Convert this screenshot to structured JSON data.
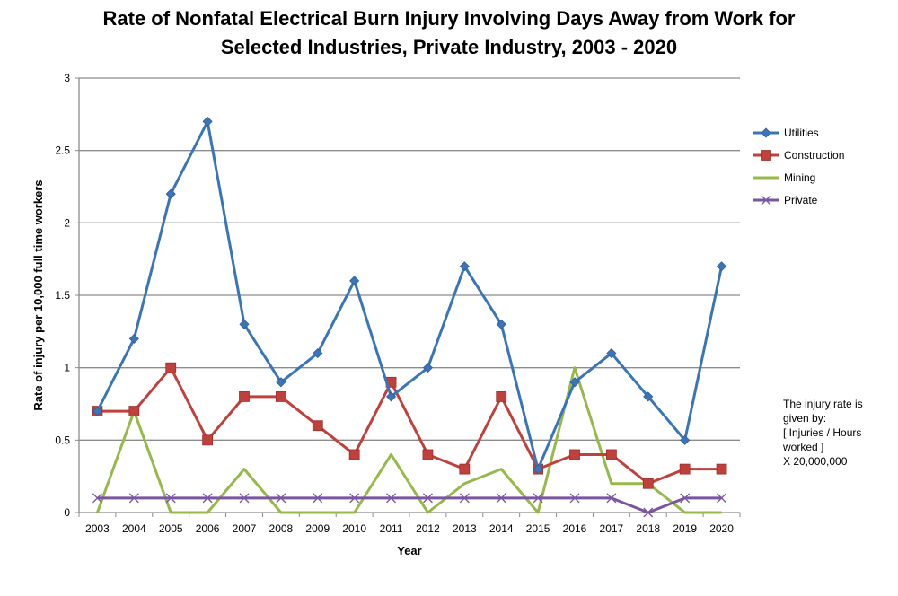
{
  "chart_data": {
    "type": "line",
    "title": [
      "Rate of Nonfatal Electrical Burn Injury Involving Days Away from Work for",
      "Selected Industries, Private Industry, 2003 - 2020"
    ],
    "xlabel": "Year",
    "ylabel": "Rate of injury per 10,000 full time workers",
    "ylim": [
      0,
      3
    ],
    "yticks": [
      "0",
      "0.5",
      "1",
      "1.5",
      "2",
      "2.5",
      "3"
    ],
    "grid": true,
    "legend_position": "right",
    "categories": [
      "2003",
      "2004",
      "2005",
      "2006",
      "2007",
      "2008",
      "2009",
      "2010",
      "2011",
      "2012",
      "2013",
      "2014",
      "2015",
      "2016",
      "2017",
      "2018",
      "2019",
      "2020"
    ],
    "series": [
      {
        "name": "Utilities",
        "color": "#3a75b9",
        "marker": "diamond",
        "values": [
          0.7,
          1.2,
          2.2,
          2.7,
          1.3,
          0.9,
          1.1,
          1.6,
          0.8,
          1.0,
          1.7,
          1.3,
          0.3,
          0.9,
          1.1,
          0.8,
          0.5,
          1.7
        ]
      },
      {
        "name": "Construction",
        "color": "#c0403c",
        "marker": "square",
        "values": [
          0.7,
          0.7,
          1.0,
          0.5,
          0.8,
          0.8,
          0.6,
          0.4,
          0.9,
          0.4,
          0.3,
          0.8,
          0.3,
          0.4,
          0.4,
          0.2,
          0.3,
          0.3
        ]
      },
      {
        "name": "Mining",
        "color": "#98b94a",
        "marker": "none",
        "values": [
          0,
          0.7,
          0,
          0,
          0.3,
          0,
          0,
          0,
          0.4,
          0,
          0.2,
          0.3,
          0,
          1.0,
          0.2,
          0.2,
          0,
          0
        ]
      },
      {
        "name": "Private",
        "color": "#7b55a0",
        "marker": "x",
        "values": [
          0.1,
          0.1,
          0.1,
          0.1,
          0.1,
          0.1,
          0.1,
          0.1,
          0.1,
          0.1,
          0.1,
          0.1,
          0.1,
          0.1,
          0.1,
          0,
          0.1,
          0.1
        ]
      }
    ],
    "annotation": [
      "The injury rate is",
      "given by:",
      "[ Injuries / Hours",
      "worked ]",
      "X 20,000,000"
    ]
  }
}
